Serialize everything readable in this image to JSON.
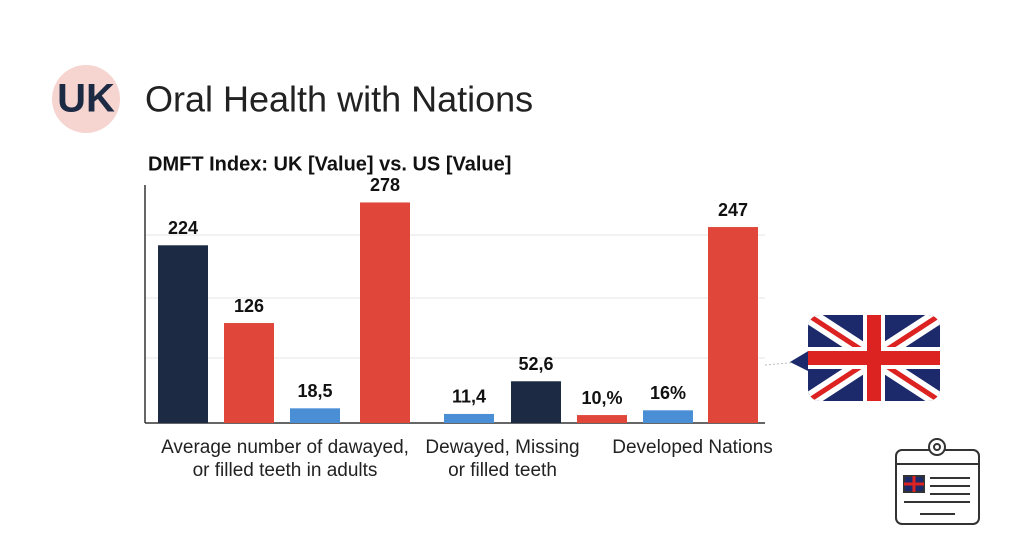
{
  "header": {
    "badge": "UK",
    "title": "Oral Health with Nations"
  },
  "chart_data": {
    "type": "bar",
    "title": "DMFT Index: UK [Value] vs. US [Value]",
    "ylim": [
      0,
      300
    ],
    "groups": [
      {
        "name": "Average number of dawayed, or filled teeth in adults",
        "values": [
          224,
          126,
          18.5,
          278
        ],
        "value_labels": [
          "224",
          "126",
          "18,5",
          "278"
        ],
        "colors": [
          "#1c2a44",
          "#e0463a",
          "#4a8fd6",
          "#e0463a"
        ]
      },
      {
        "name": "Dewayed, Missing or filled teeth",
        "values": [
          11.4,
          52.6,
          10
        ],
        "value_labels": [
          "11,4",
          "52,6",
          "10,%"
        ],
        "colors": [
          "#4a8fd6",
          "#1c2a44",
          "#e0463a"
        ]
      },
      {
        "name": "Developed Nations",
        "values": [
          16,
          247
        ],
        "value_labels": [
          "16%",
          "247"
        ],
        "colors": [
          "#4a8fd6",
          "#e0463a"
        ]
      }
    ]
  }
}
